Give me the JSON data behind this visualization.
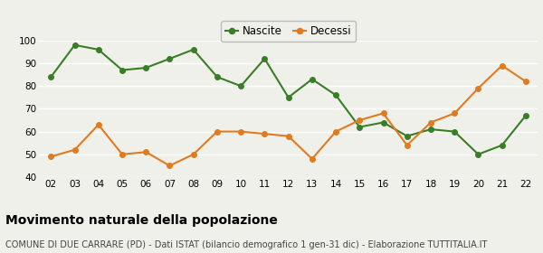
{
  "years": [
    "02",
    "03",
    "04",
    "05",
    "06",
    "07",
    "08",
    "09",
    "10",
    "11",
    "12",
    "13",
    "14",
    "15",
    "16",
    "17",
    "18",
    "19",
    "20",
    "21",
    "22"
  ],
  "nascite": [
    84,
    98,
    96,
    87,
    88,
    92,
    96,
    84,
    80,
    92,
    75,
    83,
    76,
    62,
    64,
    58,
    61,
    60,
    50,
    54,
    67
  ],
  "decessi": [
    49,
    52,
    63,
    50,
    51,
    45,
    50,
    60,
    60,
    59,
    58,
    48,
    60,
    65,
    68,
    54,
    64,
    68,
    79,
    89,
    82
  ],
  "nascite_color": "#3a7d27",
  "decessi_color": "#e07b20",
  "nascite_label": "Nascite",
  "decessi_label": "Decessi",
  "ylim": [
    40,
    100
  ],
  "yticks": [
    40,
    50,
    60,
    70,
    80,
    90,
    100
  ],
  "title": "Movimento naturale della popolazione",
  "subtitle": "COMUNE DI DUE CARRARE (PD) - Dati ISTAT (bilancio demografico 1 gen-31 dic) - Elaborazione TUTTITALIA.IT",
  "title_fontsize": 10,
  "subtitle_fontsize": 7,
  "background_color": "#f0f0eb",
  "grid_color": "#ffffff",
  "line_width": 1.5,
  "marker_size": 4
}
